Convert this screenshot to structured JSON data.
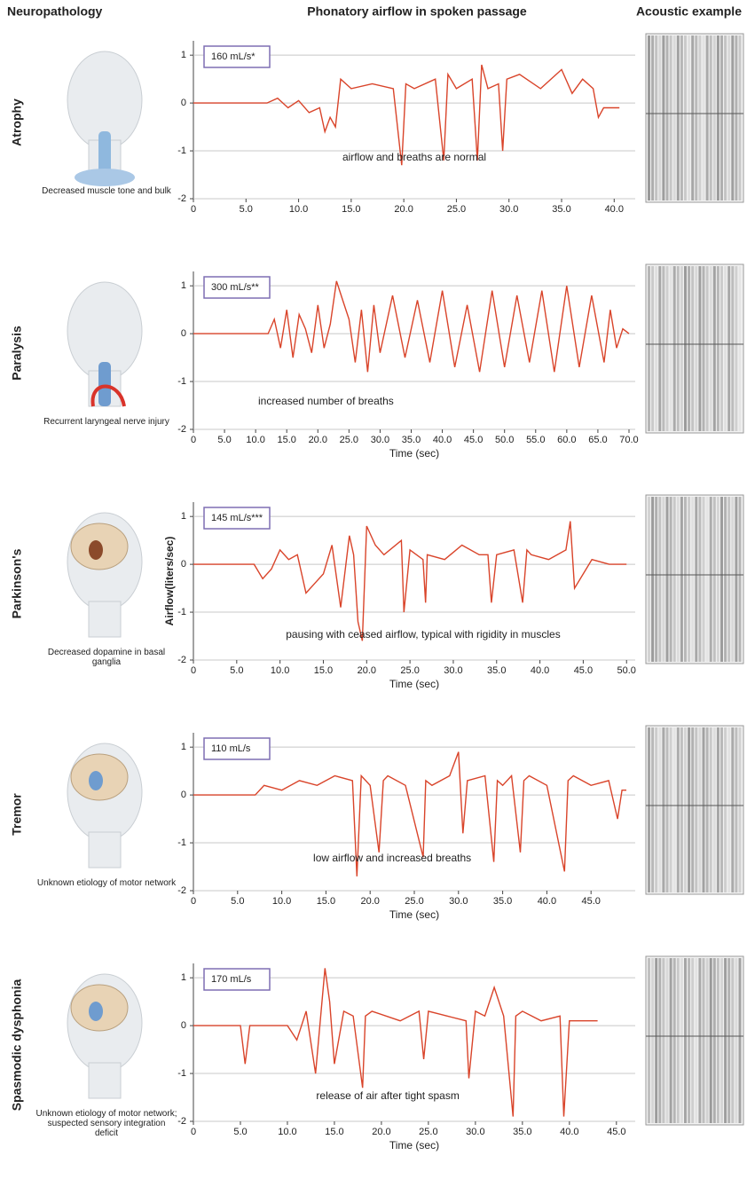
{
  "headers": {
    "neuropathology": "Neuropathology",
    "airflow": "Phonatory airflow in spoken passage",
    "acoustic": "Acoustic example"
  },
  "panels": [
    {
      "label": "Atrophy",
      "caption": "Decreased muscle tone and bulk"
    },
    {
      "label": "Paralysis",
      "caption": "Recurrent laryngeal nerve injury"
    },
    {
      "label": "Parkinson's",
      "caption": "Decreased dopamine in basal ganglia"
    },
    {
      "label": "Tremor",
      "caption": "Unknown etiology of motor network"
    },
    {
      "label": "Spasmodic dysphonia",
      "caption": "Unknown etiology of motor network; suspected sensory integration deficit"
    }
  ],
  "chart_data": [
    {
      "type": "line",
      "color": "#d9442a",
      "rate_label": "160 mL/s*",
      "annotation": "airflow and breaths are normal",
      "x": [
        0,
        7,
        8,
        9,
        10,
        11,
        12,
        12.5,
        13,
        13.5,
        14,
        15,
        17,
        19,
        19.8,
        20.2,
        21,
        23,
        23.8,
        24.2,
        25,
        26.5,
        27,
        27.4,
        28,
        29,
        29.4,
        29.8,
        31,
        33,
        35,
        36,
        37,
        38,
        38.5,
        39,
        40.5
      ],
      "values": [
        0,
        0,
        0.1,
        -0.1,
        0.05,
        -0.2,
        -0.1,
        -0.6,
        -0.3,
        -0.5,
        0.5,
        0.3,
        0.4,
        0.3,
        -1.3,
        0.4,
        0.3,
        0.5,
        -1.2,
        0.6,
        0.3,
        0.5,
        -1.2,
        0.8,
        0.3,
        0.4,
        -1,
        0.5,
        0.6,
        0.3,
        0.7,
        0.2,
        0.5,
        0.3,
        -0.3,
        -0.1,
        -0.1
      ],
      "xlim": [
        0,
        42
      ],
      "ylim": [
        -2,
        1.3
      ],
      "yticks": [
        1,
        0,
        -1,
        -2
      ],
      "grid": true,
      "xticks": [
        0,
        {
          "value": 5,
          "label": "5.0"
        },
        {
          "value": 10,
          "label": "10.0"
        },
        {
          "value": 15,
          "label": "15.0"
        },
        {
          "value": 20,
          "label": "20.0"
        },
        {
          "value": 25,
          "label": "25.0"
        },
        {
          "value": 30,
          "label": "30.0"
        },
        {
          "value": 35,
          "label": "35.0"
        },
        {
          "value": 40,
          "label": "40.0"
        }
      ]
    },
    {
      "type": "line",
      "color": "#d9442a",
      "rate_label": "300 mL/s**",
      "annotation": "increased number of breaths",
      "x_label": "Time (sec)",
      "x": [
        0,
        12,
        13,
        14,
        15,
        16,
        17,
        18,
        19,
        20,
        21,
        22,
        23,
        24,
        25,
        26,
        27,
        28,
        29,
        30,
        32,
        34,
        36,
        38,
        40,
        42,
        44,
        46,
        48,
        50,
        52,
        54,
        56,
        58,
        60,
        62,
        64,
        66,
        67,
        68,
        69,
        70
      ],
      "values": [
        0,
        0,
        0.3,
        -0.3,
        0.5,
        -0.5,
        0.4,
        0.1,
        -0.4,
        0.6,
        -0.3,
        0.2,
        1.1,
        0.7,
        0.3,
        -0.6,
        0.5,
        -0.8,
        0.6,
        -0.4,
        0.8,
        -0.5,
        0.7,
        -0.6,
        0.9,
        -0.7,
        0.6,
        -0.8,
        0.9,
        -0.7,
        0.8,
        -0.6,
        0.9,
        -0.8,
        1.0,
        -0.7,
        0.8,
        -0.6,
        0.5,
        -0.3,
        0.1,
        0
      ],
      "xlim": [
        0,
        71
      ],
      "ylim": [
        -2,
        1.3
      ],
      "yticks": [
        1,
        0,
        -1,
        -2
      ],
      "grid": true,
      "xticks": [
        0,
        {
          "value": 5,
          "label": "5.0"
        },
        {
          "value": 10,
          "label": "10.0"
        },
        {
          "value": 15,
          "label": "15.0"
        },
        {
          "value": 20,
          "label": "20.0"
        },
        {
          "value": 25,
          "label": "25.0"
        },
        {
          "value": 30,
          "label": "30.0"
        },
        {
          "value": 35,
          "label": "35.0"
        },
        {
          "value": 40,
          "label": "40.0"
        },
        {
          "value": 45,
          "label": "45.0"
        },
        {
          "value": 50,
          "label": "50.0"
        },
        {
          "value": 55,
          "label": "55.0"
        },
        {
          "value": 60,
          "label": "60.0"
        },
        {
          "value": 65,
          "label": "65.0"
        },
        {
          "value": 70,
          "label": "70.0"
        }
      ]
    },
    {
      "type": "line",
      "color": "#d9442a",
      "rate_label": "145 mL/s***",
      "annotation": "pausing with ceased airflow, typical with rigidity in muscles",
      "x_label": "Time (sec)",
      "ylabel": "Airflow(liters/sec)",
      "x": [
        0,
        7,
        8,
        9,
        10,
        11,
        12,
        13,
        14,
        15,
        16,
        17,
        18,
        18.5,
        19,
        19.5,
        20,
        21,
        22,
        24,
        24.3,
        25,
        26.5,
        26.8,
        27,
        29,
        31,
        33,
        34,
        34.4,
        35,
        37,
        38,
        38.5,
        39,
        41,
        43,
        43.5,
        44,
        46,
        48,
        50
      ],
      "values": [
        0,
        0,
        -0.3,
        -0.1,
        0.3,
        0.1,
        0.2,
        -0.6,
        -0.4,
        -0.2,
        0.4,
        -0.9,
        0.6,
        0.2,
        -1.2,
        -1.6,
        0.8,
        0.4,
        0.2,
        0.5,
        -1,
        0.3,
        0.1,
        -0.8,
        0.2,
        0.1,
        0.4,
        0.2,
        0.2,
        -0.8,
        0.2,
        0.3,
        -0.8,
        0.3,
        0.2,
        0.1,
        0.3,
        0.9,
        -0.5,
        0.1,
        0,
        0
      ],
      "xlim": [
        0,
        51
      ],
      "ylim": [
        -2,
        1.3
      ],
      "yticks": [
        1,
        0,
        -1,
        -2
      ],
      "grid": true,
      "xticks": [
        0,
        {
          "value": 5,
          "label": "5.0"
        },
        {
          "value": 10,
          "label": "10.0"
        },
        {
          "value": 15,
          "label": "15.0"
        },
        {
          "value": 20,
          "label": "20.0"
        },
        {
          "value": 25,
          "label": "25.0"
        },
        {
          "value": 30,
          "label": "30.0"
        },
        {
          "value": 35,
          "label": "35.0"
        },
        {
          "value": 40,
          "label": "40.0"
        },
        {
          "value": 45,
          "label": "45.0"
        },
        {
          "value": 50,
          "label": "50.0"
        }
      ]
    },
    {
      "type": "line",
      "color": "#d9442a",
      "rate_label": "110 mL/s",
      "annotation": "low airflow and increased breaths",
      "x_label": "Time (sec)",
      "x": [
        0,
        7,
        8,
        10,
        12,
        14,
        16,
        18,
        18.5,
        19,
        20,
        21,
        21.5,
        22,
        24,
        26,
        26.3,
        27,
        29,
        30,
        30.5,
        31,
        33,
        34,
        34.4,
        35,
        36,
        37,
        37.4,
        38,
        40,
        42,
        42.4,
        43,
        45,
        47,
        48,
        48.5,
        49
      ],
      "values": [
        0,
        0,
        0.2,
        0.1,
        0.3,
        0.2,
        0.4,
        0.3,
        -1.7,
        0.4,
        0.2,
        -1.2,
        0.3,
        0.4,
        0.2,
        -1.3,
        0.3,
        0.2,
        0.4,
        0.9,
        -0.8,
        0.3,
        0.4,
        -1.4,
        0.3,
        0.2,
        0.4,
        -1.2,
        0.3,
        0.4,
        0.2,
        -1.6,
        0.3,
        0.4,
        0.2,
        0.3,
        -0.5,
        0.1,
        0.1
      ],
      "xlim": [
        0,
        50
      ],
      "ylim": [
        -2,
        1.3
      ],
      "yticks": [
        1,
        0,
        -1,
        -2
      ],
      "grid": true,
      "xticks": [
        0,
        {
          "value": 5,
          "label": "5.0"
        },
        {
          "value": 10,
          "label": "10.0"
        },
        {
          "value": 15,
          "label": "15.0"
        },
        {
          "value": 20,
          "label": "20.0"
        },
        {
          "value": 25,
          "label": "25.0"
        },
        {
          "value": 30,
          "label": "30.0"
        },
        {
          "value": 35,
          "label": "35.0"
        },
        {
          "value": 40,
          "label": "40.0"
        },
        {
          "value": 45,
          "label": "45.0"
        }
      ]
    },
    {
      "type": "line",
      "color": "#d9442a",
      "rate_label": "170 mL/s",
      "annotation": "release of air after tight spasm",
      "x_label": "Time (sec)",
      "x": [
        0,
        5,
        5.5,
        6,
        10,
        11,
        12,
        13,
        14,
        14.5,
        15,
        16,
        17,
        18,
        18.3,
        19,
        22,
        24,
        24.5,
        25,
        27,
        29,
        29.3,
        30,
        31,
        32,
        33,
        34,
        34.3,
        35,
        37,
        39,
        39.4,
        40,
        42,
        43
      ],
      "values": [
        0,
        0,
        -0.8,
        0,
        0,
        -0.3,
        0.3,
        -1,
        1.2,
        0.5,
        -0.8,
        0.3,
        0.2,
        -1.3,
        0.2,
        0.3,
        0.1,
        0.3,
        -0.7,
        0.3,
        0.2,
        0.1,
        -1.1,
        0.3,
        0.2,
        0.8,
        0.2,
        -1.9,
        0.2,
        0.3,
        0.1,
        0.2,
        -1.9,
        0.1,
        0.1,
        0.1
      ],
      "xlim": [
        0,
        47
      ],
      "ylim": [
        -2,
        1.3
      ],
      "yticks": [
        1,
        0,
        -1,
        -2
      ],
      "grid": true,
      "xticks": [
        0,
        {
          "value": 5,
          "label": "5.0"
        },
        {
          "value": 10,
          "label": "10.0"
        },
        {
          "value": 15,
          "label": "15.0"
        },
        {
          "value": 20,
          "label": "20.0"
        },
        {
          "value": 25,
          "label": "25.0"
        },
        {
          "value": 30,
          "label": "30.0"
        },
        {
          "value": 35,
          "label": "35.0"
        },
        {
          "value": 40,
          "label": "40.0"
        },
        {
          "value": 45,
          "label": "45.0"
        }
      ]
    }
  ]
}
